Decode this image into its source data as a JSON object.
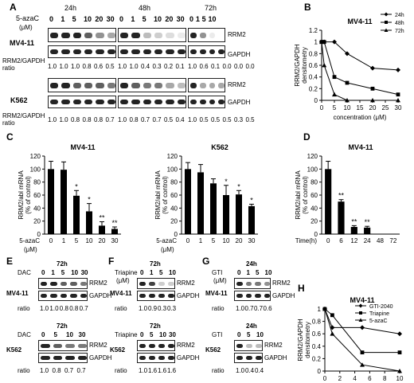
{
  "panels": {
    "A": {
      "letter": "A",
      "drug": "5-azaC",
      "unit": "(μM)",
      "times": [
        "24h",
        "48h",
        "72h"
      ],
      "doses": [
        "0",
        "1",
        "5",
        "10",
        "20",
        "30"
      ],
      "cell1": "MV4-11",
      "cell2": "K562",
      "rrm2": "RRM2",
      "gapdh": "GAPDH",
      "ratio_label": "RRM2/GAPDH",
      "ratio_word": "ratio",
      "ratios1": [
        [
          "1.0",
          "1.0",
          "1.0",
          "0.8",
          "0.6",
          "0.5"
        ],
        [
          "1.0",
          "1.0",
          "0.4",
          "0.3",
          "0.2",
          "0.1"
        ],
        [
          "1.0",
          "0.6",
          "0.1",
          "0.0",
          "0.0",
          "0.0"
        ]
      ],
      "ratios2": [
        [
          "1.0",
          "1.0",
          "0.8",
          "0.8",
          "0.8",
          "0.7"
        ],
        [
          "1.0",
          "0.8",
          "0.7",
          "0.7",
          "0.5",
          "0.4"
        ],
        [
          "1.0",
          "0.5",
          "0.5",
          "0.5",
          "0.3",
          "0.5"
        ]
      ]
    },
    "B": {
      "letter": "B"
    },
    "C": {
      "letter": "C"
    },
    "D": {
      "letter": "D"
    },
    "E": {
      "letter": "E",
      "time": "72h",
      "drug": "DAC",
      "doses": [
        "0",
        "1",
        "5",
        "10",
        "30"
      ],
      "doses2": [
        "0",
        "5",
        "10",
        "30"
      ],
      "cell1": "MV4-11",
      "cell2": "K562",
      "rrm2": "RRM2",
      "gapdh": "GAPDH",
      "ratio_word": "ratio",
      "ratios1": [
        "1.0",
        "1.0",
        "0.8",
        "0.8",
        "0.7"
      ],
      "ratios2": [
        "1.0",
        "0.8",
        "0.7",
        "0.7"
      ]
    },
    "F": {
      "letter": "F",
      "time": "72h",
      "drug": "Triapine",
      "unit": "(μM)",
      "doses": [
        "0",
        "1",
        "5",
        "10"
      ],
      "doses2": [
        "0",
        "5",
        "10",
        "30"
      ],
      "cell1": "MV4-11",
      "cell2": "K562",
      "rrm2": "RRM2",
      "gapdh": "GAPDH",
      "ratio_word": "ratio",
      "ratios1": [
        "1.0",
        "0.9",
        "0.3",
        "0.3"
      ],
      "ratios2": [
        "1.0",
        "1.6",
        "1.6",
        "1.6"
      ]
    },
    "G": {
      "letter": "G",
      "time": "24h",
      "drug": "GTI",
      "unit": "(μM)",
      "doses": [
        "0",
        "1",
        "5",
        "10"
      ],
      "doses2": [
        "0",
        "5",
        "10"
      ],
      "cell1": "MV4-11",
      "cell2": "K562",
      "rrm2": "RRM2",
      "gapdh": "GAPDH",
      "ratio_word": "ratio",
      "ratios1": [
        "1.0",
        "0.7",
        "0.7",
        "0.6"
      ],
      "ratios2": [
        "1.0",
        "0.4",
        "0.4"
      ]
    },
    "H": {
      "letter": "H"
    }
  },
  "chart_data": [
    {
      "id": "B",
      "type": "line",
      "title": "MV4-11",
      "ylabel": "RRM2/GAPDH densitometry",
      "xlabel": "concentration (μM)",
      "xlim": [
        0,
        30
      ],
      "ylim": [
        0,
        1.2
      ],
      "xticks": [
        0,
        5,
        10,
        15,
        20,
        25,
        30
      ],
      "yticks": [
        0,
        0.2,
        0.4,
        0.6,
        0.8,
        1,
        1.2
      ],
      "yticklabels": [
        "0",
        "0.2",
        "0.4",
        "0.6",
        "0.8",
        "1",
        "1.2"
      ],
      "series": [
        {
          "name": "24h",
          "marker": "diamond",
          "x": [
            0,
            1,
            5,
            10,
            20,
            30
          ],
          "y": [
            1.0,
            1.0,
            1.0,
            0.8,
            0.55,
            0.52
          ]
        },
        {
          "name": "48h",
          "marker": "square",
          "x": [
            0,
            1,
            5,
            10,
            20,
            30
          ],
          "y": [
            1.0,
            1.0,
            0.4,
            0.3,
            0.2,
            0.1
          ]
        },
        {
          "name": "72h",
          "marker": "triangle",
          "x": [
            0,
            1,
            5,
            10,
            20,
            30
          ],
          "y": [
            1.0,
            0.6,
            0.1,
            0.0,
            0.0,
            0.0
          ]
        }
      ]
    },
    {
      "id": "C1",
      "type": "bar",
      "title": "MV4-11",
      "ylabel": "RRM2/abl mRNA (% of control)",
      "xlabel": "5-azaC (μM)",
      "categories": [
        "0",
        "1",
        "5",
        "10",
        "20",
        "30"
      ],
      "values": [
        100,
        99,
        59,
        35,
        13,
        8
      ],
      "errors": [
        12,
        12,
        8,
        12,
        6,
        3
      ],
      "annotations": [
        "",
        "",
        "*",
        "*",
        "**",
        "**"
      ],
      "ylim": [
        0,
        120
      ],
      "yticks": [
        0,
        20,
        40,
        60,
        80,
        100,
        120
      ]
    },
    {
      "id": "C2",
      "type": "bar",
      "title": "K562",
      "ylabel": "RRM2/abl mRNA (% of control)",
      "xlabel": "5-azaC (μM)",
      "categories": [
        "0",
        "1",
        "5",
        "10",
        "20",
        "30"
      ],
      "values": [
        100,
        95,
        78,
        60,
        61,
        43
      ],
      "errors": [
        10,
        12,
        7,
        15,
        6,
        3
      ],
      "annotations": [
        "",
        "",
        "",
        "*",
        "*",
        "*"
      ],
      "ylim": [
        0,
        120
      ],
      "yticks": [
        0,
        20,
        40,
        60,
        80,
        100,
        120
      ]
    },
    {
      "id": "D",
      "type": "bar",
      "title": "MV4-11",
      "ylabel": "RRM2/abl mRNA (% of control)",
      "xlabel": "Time(h)",
      "categories": [
        "0",
        "6",
        "12",
        "24",
        "48",
        "72"
      ],
      "values": [
        100,
        50,
        11,
        10,
        0,
        0
      ],
      "errors": [
        12,
        3,
        2,
        2,
        0,
        0
      ],
      "annotations": [
        "",
        "**",
        "**",
        "**",
        "",
        ""
      ],
      "ylim": [
        0,
        120
      ],
      "yticks": [
        0,
        20,
        40,
        60,
        80,
        100,
        120
      ]
    },
    {
      "id": "H",
      "type": "line",
      "title": "MV4-11",
      "ylabel": "RRM2/GAPDH densitometry",
      "xlabel": "concentration (μM)",
      "xlim": [
        0,
        10
      ],
      "ylim": [
        0,
        1
      ],
      "xticks": [
        0,
        2,
        4,
        6,
        8,
        10
      ],
      "yticks": [
        0,
        0.2,
        0.4,
        0.6,
        0.8,
        1
      ],
      "yticklabels": [
        "0",
        "0.2",
        "0.4",
        "0.6",
        "0.8",
        "1"
      ],
      "series": [
        {
          "name": "GTI-2040",
          "marker": "diamond",
          "x": [
            0,
            1,
            5,
            10
          ],
          "y": [
            1.0,
            0.7,
            0.7,
            0.6
          ]
        },
        {
          "name": "Triapine",
          "marker": "square",
          "x": [
            0,
            1,
            5,
            10
          ],
          "y": [
            1.0,
            0.9,
            0.3,
            0.3
          ]
        },
        {
          "name": "5-azaC",
          "marker": "triangle",
          "x": [
            0,
            1,
            5,
            10
          ],
          "y": [
            1.0,
            0.6,
            0.1,
            0.0
          ]
        }
      ]
    }
  ]
}
